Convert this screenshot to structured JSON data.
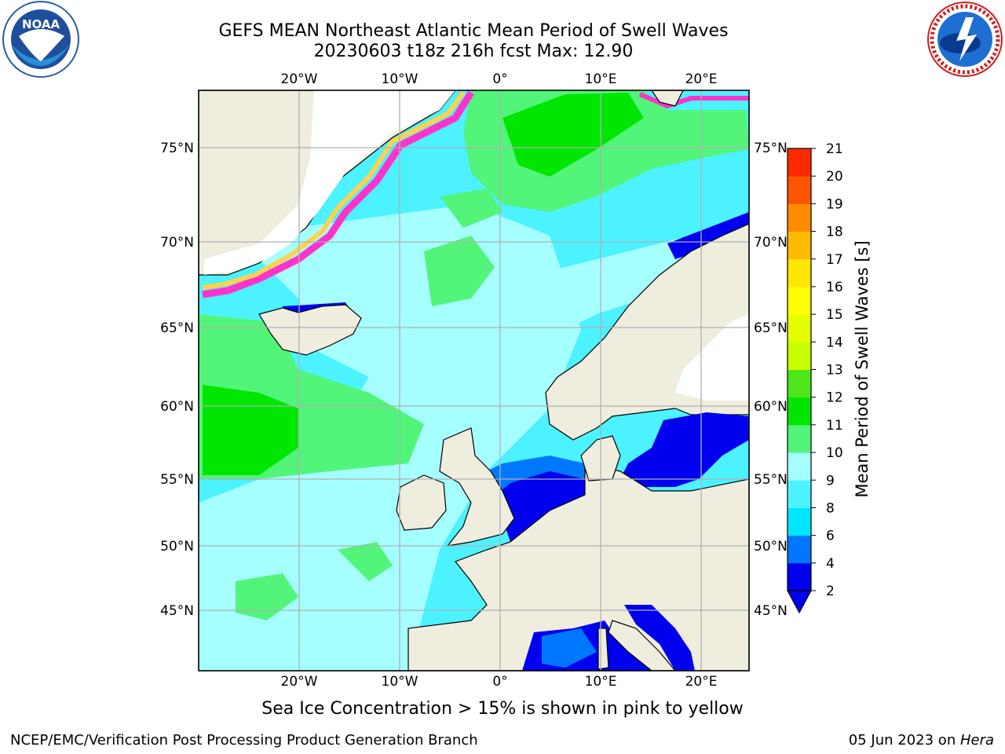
{
  "title": {
    "line1": "GEFS MEAN Northeast Atlantic Mean Period of Swell Waves",
    "line2": "20230603 t18z 216h fcst   Max: 12.90"
  },
  "logos": {
    "left": {
      "name": "noaa-logo",
      "text": "NOAA",
      "ring_text": "NATIONAL OCEANIC AND ATMOSPHERIC ADMINISTRATION · U.S. DEPARTMENT OF COMMERCE"
    },
    "right": {
      "name": "nws-logo",
      "ring_text": "NATIONAL WEATHER SERVICE"
    }
  },
  "map": {
    "lon_labels_top": [
      "20°W",
      "10°W",
      "0°",
      "10°E",
      "20°E"
    ],
    "lon_labels_bottom": [
      "20°W",
      "10°W",
      "0°",
      "10°E",
      "20°E"
    ],
    "lat_labels_left": [
      "75°N",
      "70°N",
      "65°N",
      "60°N",
      "55°N",
      "50°N",
      "45°N"
    ],
    "lat_labels_right": [
      "75°N",
      "70°N",
      "65°N",
      "60°N",
      "55°N",
      "50°N",
      "45°N"
    ],
    "colors": {
      "land": "#efedde",
      "ice": "#ffffff",
      "coast": "#000000",
      "grid": "#b0b0b0"
    }
  },
  "colorbar": {
    "label": "Mean Period of Swell Waves [s]",
    "ticks": [
      "2",
      "4",
      "6",
      "8",
      "9",
      "10",
      "11",
      "12",
      "13",
      "14",
      "15",
      "16",
      "17",
      "18",
      "19",
      "20",
      "21"
    ],
    "colors": [
      "#0000ee",
      "#0077ff",
      "#00e6ff",
      "#4cf2ff",
      "#a6ffff",
      "#52f57a",
      "#00e600",
      "#4ee61a",
      "#c7ff00",
      "#e6ff00",
      "#ffff00",
      "#ffe600",
      "#ffbb00",
      "#ff8c00",
      "#ff5500",
      "#ff2a00"
    ],
    "extend_color": "#0000ee"
  },
  "ice_note": "Sea Ice Concentration > 15% is shown in pink to yellow",
  "footer": {
    "left": "NCEP/EMC/Verification Post Processing Product Generation Branch",
    "right_prefix": "05 Jun 2023 on ",
    "right_machine": "Hera"
  }
}
